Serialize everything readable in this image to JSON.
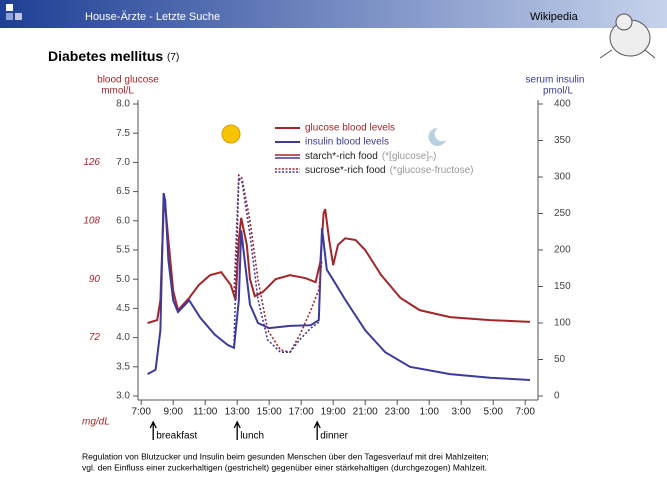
{
  "header_left": "House-Ärzte - Letzte Suche",
  "header_right": "Wikipedia",
  "title": "Diabetes mellitus",
  "title_note": "(7)",
  "caption": [
    "Regulation von Blutzucker und Insulin beim gesunden Menschen über den Tagesverlauf mit drei Mahlzeiten;",
    "vgl. den Einfluss einer zuckerhaltigen (gestrichelt) gegenüber einer stärkehaltigen (durchgezogen) Mahlzeit."
  ],
  "chart_data": {
    "type": "line",
    "ylabel": "blood glucose",
    "yunit": "mmol/L",
    "y2label": "serum insulin",
    "y2unit": "pmol/L",
    "y3unit": "mg/dL",
    "xlim": [
      6.8,
      31.8
    ],
    "xticks": [
      {
        "value": 7,
        "label": "7:00"
      },
      {
        "value": 9,
        "label": "9:00"
      },
      {
        "value": 11,
        "label": "11:00"
      },
      {
        "value": 13,
        "label": "13:00"
      },
      {
        "value": 15,
        "label": "15:00"
      },
      {
        "value": 17,
        "label": "17:00"
      },
      {
        "value": 19,
        "label": "19:00"
      },
      {
        "value": 21,
        "label": "21:00"
      },
      {
        "value": 23,
        "label": "23:00"
      },
      {
        "value": 25,
        "label": "1:00"
      },
      {
        "value": 27,
        "label": "3:00"
      },
      {
        "value": 29,
        "label": "5:00"
      },
      {
        "value": 31,
        "label": "7:00"
      }
    ],
    "ylim": [
      3,
      8
    ],
    "yticks": [
      {
        "value": 3,
        "label": "3.0"
      },
      3.5,
      {
        "value": 4,
        "label": "4.0"
      },
      4.5,
      {
        "value": 5,
        "label": "5.0"
      },
      5.5,
      {
        "value": 6,
        "label": "6.0"
      },
      6.5,
      {
        "value": 7,
        "label": "7.0"
      },
      7.5,
      {
        "value": 8,
        "label": "8.0"
      }
    ],
    "y2lim": [
      0,
      400
    ],
    "y2ticks": [
      0,
      50,
      100,
      150,
      200,
      250,
      300,
      350,
      400
    ],
    "y3lim": [
      54,
      144
    ],
    "y3ticks": [
      72,
      90,
      108,
      126
    ],
    "series": [
      {
        "name": "glucose blood levels",
        "color": "#a3262a",
        "axis": "y",
        "x": [
          7.4,
          8,
          8.2,
          8.4,
          8.5,
          8.7,
          9,
          9.3,
          10,
          10.6,
          11.3,
          12,
          12.6,
          12.9,
          13.1,
          13.25,
          13.6,
          13.8,
          14.1,
          14.6,
          15.4,
          16.3,
          17.25,
          17.9,
          18.2,
          18.4,
          18.5,
          18.75,
          19,
          19.3,
          19.75,
          20.4,
          21,
          22,
          23.2,
          24.4,
          26.3,
          28.8,
          31.3
        ],
        "values": [
          4.25,
          4.3,
          4.64,
          6.18,
          6.27,
          5.67,
          4.8,
          4.47,
          4.68,
          4.9,
          5.07,
          5.12,
          4.9,
          4.64,
          5.67,
          6.05,
          5.59,
          5.0,
          4.71,
          4.78,
          5.0,
          5.07,
          5.02,
          4.95,
          5.3,
          6.13,
          6.2,
          5.67,
          5.24,
          5.59,
          5.7,
          5.67,
          5.5,
          5.07,
          4.68,
          4.47,
          4.35,
          4.3,
          4.27
        ]
      },
      {
        "name": "insulin blood levels",
        "color": "#3b3b9c",
        "axis": "y2",
        "x": [
          7.4,
          7.9,
          8.2,
          8.4,
          8.5,
          8.7,
          9,
          9.3,
          10,
          10.7,
          11.6,
          12.4,
          12.8,
          13.1,
          13.25,
          13.5,
          13.8,
          14.3,
          15,
          16.3,
          17.6,
          18.1,
          18.3,
          18.6,
          19,
          19.75,
          21,
          22.25,
          23.8,
          26.3,
          28.8,
          31.3
        ],
        "values": [
          30,
          36,
          90,
          278,
          268,
          186,
          131,
          115,
          131,
          107,
          84,
          70,
          66,
          131,
          227,
          180,
          125,
          100,
          93,
          96,
          97,
          104,
          230,
          173,
          159,
          132,
          90,
          60,
          40,
          30,
          25,
          22
        ]
      },
      {
        "color": "#a3262a",
        "axis": "y",
        "dashed": true,
        "x": [
          12.8,
          13.1,
          13.3,
          13.8,
          14.3,
          14.9,
          15.7,
          16.3,
          16.9,
          17.6,
          18.1,
          18.3
        ],
        "values": [
          4.71,
          6.78,
          6.73,
          6.0,
          4.99,
          4.13,
          3.79,
          3.75,
          4.04,
          4.47,
          4.82,
          5.33
        ]
      },
      {
        "color": "#3b3b9c",
        "axis": "y2",
        "dashed": true,
        "x": [
          12.8,
          13.1,
          13.3,
          13.8,
          14.3,
          14.9,
          15.7,
          16.3,
          16.9,
          17.6,
          18.1
        ],
        "values": [
          70,
          299,
          293,
          221,
          132,
          77,
          60,
          60,
          77,
          93,
          101
        ]
      }
    ],
    "legend_extra": [
      {
        "label": "starch*-rich food",
        "note": "(*[glucose]ₙ)",
        "dashed": false
      },
      {
        "label": "sucrose*-rich food",
        "note": "(*glucose-fructose)",
        "dashed": true
      }
    ],
    "meals": [
      {
        "x": 7.75,
        "label": "breakfast"
      },
      {
        "x": 13,
        "label": "lunch"
      },
      {
        "x": 18,
        "label": "dinner"
      }
    ]
  }
}
